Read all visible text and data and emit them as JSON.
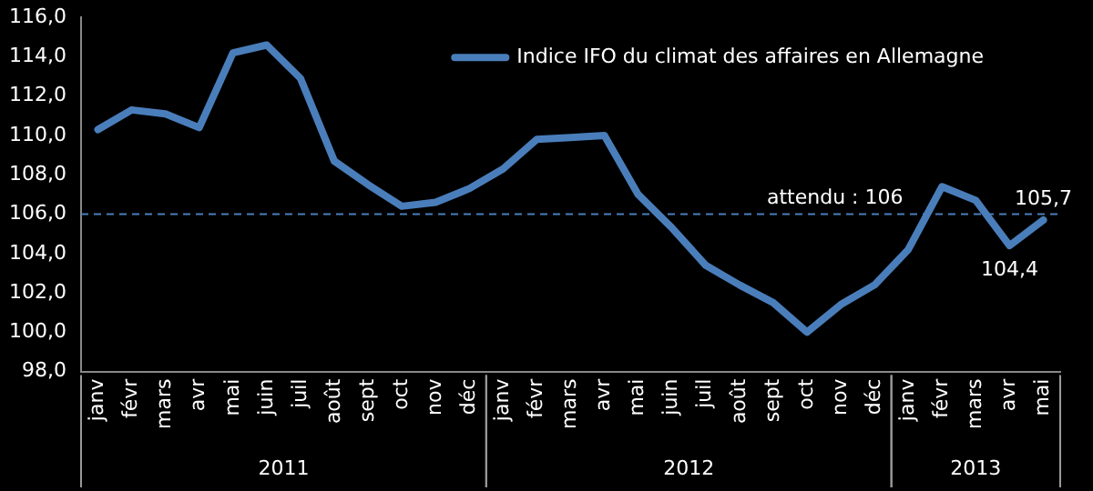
{
  "chart_data": {
    "type": "line",
    "categories": [
      "janv",
      "févr",
      "mars",
      "avr",
      "mai",
      "juin",
      "juil",
      "août",
      "sept",
      "oct",
      "nov",
      "déc",
      "janv",
      "févr",
      "mars",
      "avr",
      "mai",
      "juin",
      "juil",
      "août",
      "sept",
      "oct",
      "nov",
      "déc",
      "janv",
      "févr",
      "mars",
      "avr",
      "mai"
    ],
    "series": [
      {
        "name": "Indice IFO du climat des affaires en Allemagne",
        "color": "#4a7ebb",
        "values": [
          110.3,
          111.3,
          111.1,
          110.4,
          114.2,
          114.6,
          112.9,
          108.7,
          107.5,
          106.4,
          106.6,
          107.3,
          108.3,
          109.8,
          109.9,
          110.0,
          107.0,
          105.3,
          103.4,
          102.4,
          101.5,
          100.0,
          101.4,
          102.4,
          104.2,
          107.4,
          106.7,
          104.4,
          105.7
        ],
        "value_labels": [
          null,
          null,
          null,
          null,
          null,
          null,
          null,
          null,
          null,
          null,
          null,
          null,
          null,
          null,
          null,
          null,
          null,
          null,
          null,
          null,
          null,
          null,
          null,
          null,
          null,
          null,
          null,
          "104,4",
          "105,7"
        ]
      }
    ],
    "ylim": [
      98,
      116
    ],
    "yticks": [
      {
        "value": 98,
        "label": "98,0"
      },
      {
        "value": 100,
        "label": "100,0"
      },
      {
        "value": 102,
        "label": "102,0"
      },
      {
        "value": 104,
        "label": "104,0"
      },
      {
        "value": 106,
        "label": "106,0"
      },
      {
        "value": 108,
        "label": "108,0"
      },
      {
        "value": 110,
        "label": "110,0"
      },
      {
        "value": 112,
        "label": "112,0"
      },
      {
        "value": 114,
        "label": "114,0"
      },
      {
        "value": 116,
        "label": "116,0"
      }
    ],
    "ref_lines": [
      {
        "axis": "y",
        "value": 106,
        "label": "attendu : 106",
        "color": "#4a7ebb",
        "line_style": "dashed"
      }
    ],
    "annotations": [
      "2011",
      "2012",
      "2013"
    ],
    "legend": "top right",
    "marker": "none",
    "line_style": "solid",
    "grid": false
  }
}
